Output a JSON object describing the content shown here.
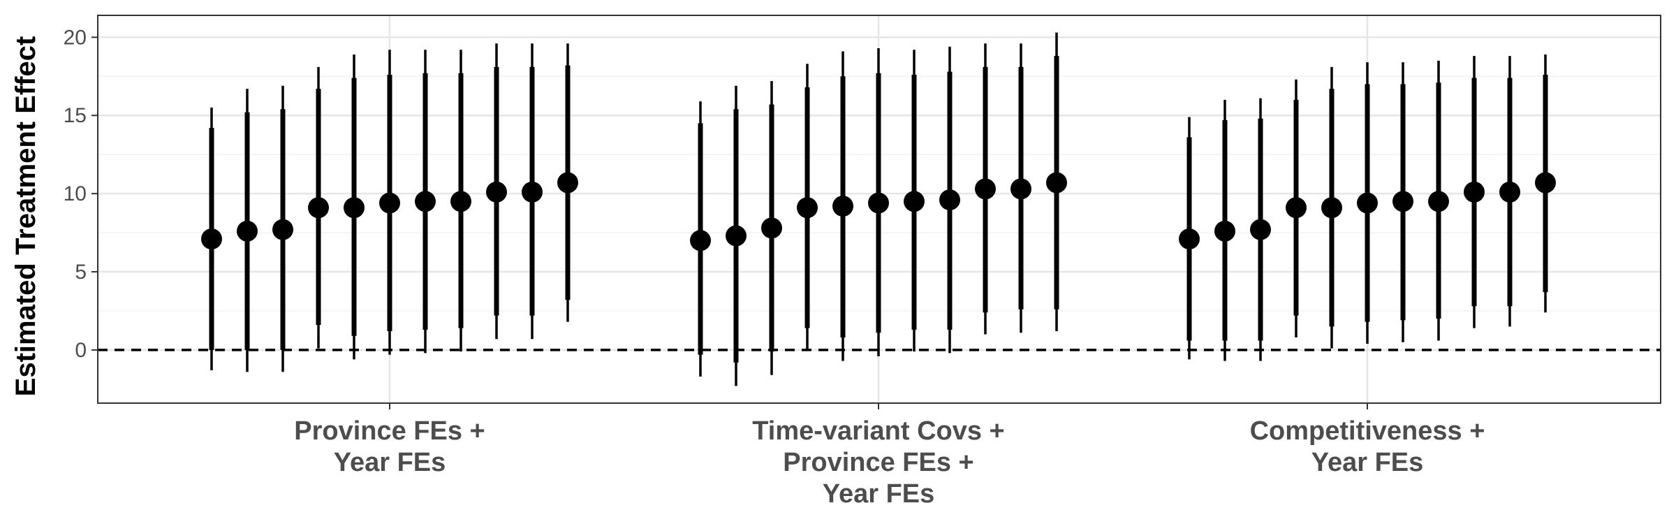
{
  "chart_data": {
    "type": "point-range",
    "title": "",
    "xlabel": "",
    "ylabel": "Estimated Treatment Effect",
    "ylim": [
      -3.4,
      21.4
    ],
    "yticks": [
      0,
      5,
      10,
      15,
      20
    ],
    "reference_line": {
      "y": 0,
      "style": "dashed"
    },
    "grid": true,
    "categories": [
      {
        "name": "Province FEs + Year FEs",
        "label_lines": [
          "Province FEs +",
          "Year FEs"
        ]
      },
      {
        "name": "Time-variant Covs + Province FEs + Year FEs",
        "label_lines": [
          "Time-variant Covs +",
          "Province FEs +",
          "Year FEs"
        ]
      },
      {
        "name": "Competitiveness + Year FEs",
        "label_lines": [
          "Competitiveness +",
          "Year FEs"
        ]
      }
    ],
    "series": [
      {
        "category": "Province FEs + Year FEs",
        "estimates": [
          {
            "est": 7.1,
            "ci90": [
              0.0,
              14.2
            ],
            "ci95": [
              -1.3,
              15.5
            ]
          },
          {
            "est": 7.6,
            "ci90": [
              0.0,
              15.2
            ],
            "ci95": [
              -1.4,
              16.7
            ]
          },
          {
            "est": 7.7,
            "ci90": [
              0.0,
              15.4
            ],
            "ci95": [
              -1.4,
              16.9
            ]
          },
          {
            "est": 9.1,
            "ci90": [
              1.6,
              16.7
            ],
            "ci95": [
              0.1,
              18.1
            ]
          },
          {
            "est": 9.1,
            "ci90": [
              0.9,
              17.4
            ],
            "ci95": [
              -0.6,
              18.9
            ]
          },
          {
            "est": 9.4,
            "ci90": [
              1.2,
              17.6
            ],
            "ci95": [
              -0.3,
              19.2
            ]
          },
          {
            "est": 9.5,
            "ci90": [
              1.3,
              17.7
            ],
            "ci95": [
              -0.2,
              19.2
            ]
          },
          {
            "est": 9.5,
            "ci90": [
              1.4,
              17.7
            ],
            "ci95": [
              -0.1,
              19.2
            ]
          },
          {
            "est": 10.1,
            "ci90": [
              2.2,
              18.1
            ],
            "ci95": [
              0.7,
              19.6
            ]
          },
          {
            "est": 10.1,
            "ci90": [
              2.2,
              18.1
            ],
            "ci95": [
              0.7,
              19.6
            ]
          },
          {
            "est": 10.7,
            "ci90": [
              3.2,
              18.2
            ],
            "ci95": [
              1.8,
              19.6
            ]
          }
        ]
      },
      {
        "category": "Time-variant Covs + Province FEs + Year FEs",
        "estimates": [
          {
            "est": 7.0,
            "ci90": [
              -0.3,
              14.5
            ],
            "ci95": [
              -1.7,
              15.9
            ]
          },
          {
            "est": 7.3,
            "ci90": [
              -0.8,
              15.4
            ],
            "ci95": [
              -2.3,
              16.9
            ]
          },
          {
            "est": 7.8,
            "ci90": [
              -0.1,
              15.7
            ],
            "ci95": [
              -1.6,
              17.2
            ]
          },
          {
            "est": 9.1,
            "ci90": [
              1.4,
              16.8
            ],
            "ci95": [
              0.0,
              18.3
            ]
          },
          {
            "est": 9.2,
            "ci90": [
              0.8,
              17.5
            ],
            "ci95": [
              -0.7,
              19.1
            ]
          },
          {
            "est": 9.4,
            "ci90": [
              1.1,
              17.7
            ],
            "ci95": [
              -0.4,
              19.3
            ]
          },
          {
            "est": 9.5,
            "ci90": [
              1.3,
              17.6
            ],
            "ci95": [
              -0.1,
              19.2
            ]
          },
          {
            "est": 9.6,
            "ci90": [
              1.3,
              17.8
            ],
            "ci95": [
              -0.2,
              19.4
            ]
          },
          {
            "est": 10.3,
            "ci90": [
              2.4,
              18.1
            ],
            "ci95": [
              1.0,
              19.6
            ]
          },
          {
            "est": 10.3,
            "ci90": [
              2.6,
              18.1
            ],
            "ci95": [
              1.1,
              19.6
            ]
          },
          {
            "est": 10.7,
            "ci90": [
              2.6,
              18.8
            ],
            "ci95": [
              1.2,
              20.3
            ]
          }
        ]
      },
      {
        "category": "Competitiveness + Year FEs",
        "estimates": [
          {
            "est": 7.1,
            "ci90": [
              0.6,
              13.6
            ],
            "ci95": [
              -0.6,
              14.9
            ]
          },
          {
            "est": 7.6,
            "ci90": [
              0.6,
              14.7
            ],
            "ci95": [
              -0.7,
              16.0
            ]
          },
          {
            "est": 7.7,
            "ci90": [
              0.6,
              14.8
            ],
            "ci95": [
              -0.7,
              16.1
            ]
          },
          {
            "est": 9.1,
            "ci90": [
              2.2,
              16.0
            ],
            "ci95": [
              0.8,
              17.3
            ]
          },
          {
            "est": 9.1,
            "ci90": [
              1.5,
              16.7
            ],
            "ci95": [
              0.1,
              18.1
            ]
          },
          {
            "est": 9.4,
            "ci90": [
              1.8,
              17.0
            ],
            "ci95": [
              0.4,
              18.4
            ]
          },
          {
            "est": 9.5,
            "ci90": [
              1.9,
              17.0
            ],
            "ci95": [
              0.5,
              18.4
            ]
          },
          {
            "est": 9.5,
            "ci90": [
              2.0,
              17.1
            ],
            "ci95": [
              0.6,
              18.5
            ]
          },
          {
            "est": 10.1,
            "ci90": [
              2.8,
              17.4
            ],
            "ci95": [
              1.4,
              18.8
            ]
          },
          {
            "est": 10.1,
            "ci90": [
              2.8,
              17.4
            ],
            "ci95": [
              1.5,
              18.8
            ]
          },
          {
            "est": 10.7,
            "ci90": [
              3.7,
              17.6
            ],
            "ci95": [
              2.4,
              18.9
            ]
          }
        ]
      }
    ]
  }
}
